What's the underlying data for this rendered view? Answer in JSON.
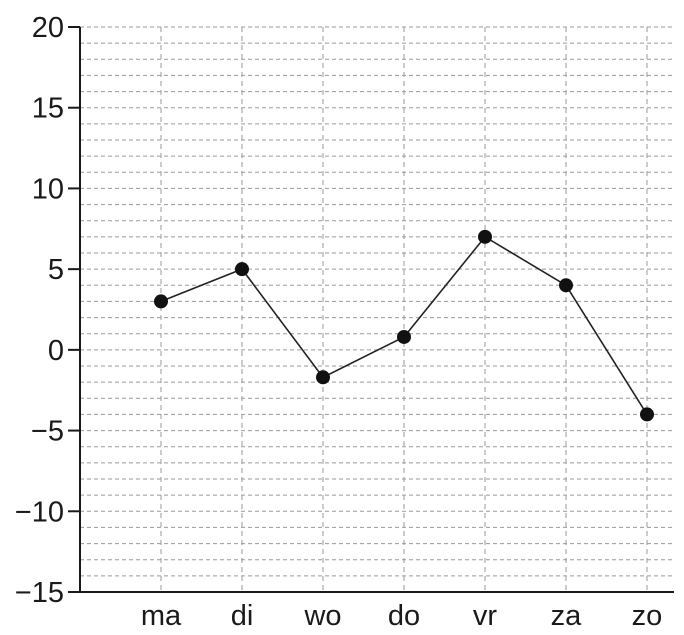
{
  "chart_data": {
    "type": "line",
    "categories": [
      "ma",
      "di",
      "wo",
      "do",
      "vr",
      "za",
      "zo"
    ],
    "series": [
      {
        "values": [
          3,
          5,
          -1.7,
          0.8,
          7,
          4,
          -4
        ]
      }
    ],
    "y_ticks": [
      "20",
      "15",
      "10",
      "5",
      "0",
      "−5",
      "−10",
      "−15"
    ],
    "ylim": [
      -15,
      20
    ],
    "y_minor_step": 1,
    "grid": true,
    "colors": {
      "line": "#222222",
      "marker": "#111111",
      "grid": "#9a9a9a",
      "axis": "#1a1a1a"
    }
  }
}
